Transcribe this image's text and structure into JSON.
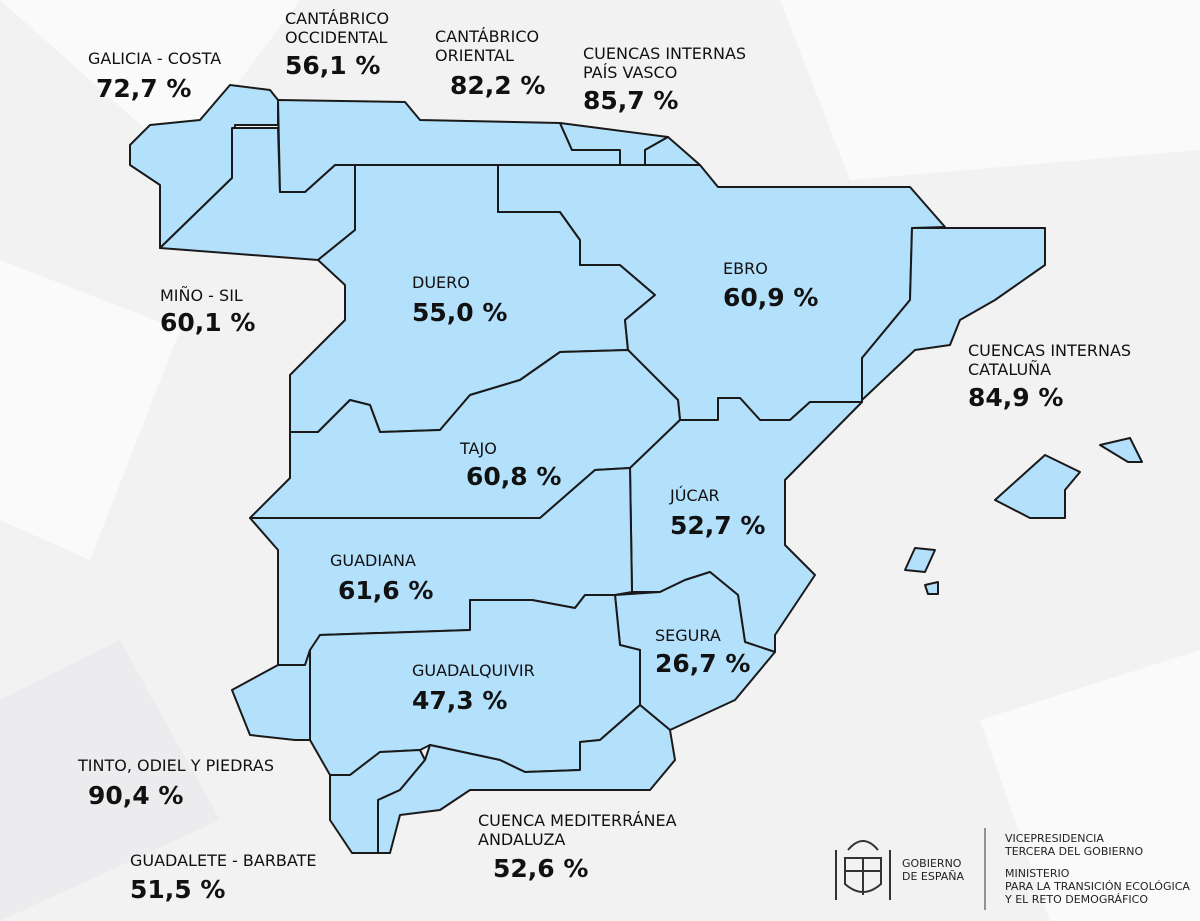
{
  "map": {
    "regions": [
      {
        "name": [
          "GALICIA - COSTA"
        ],
        "value": "72,7 %"
      },
      {
        "name": [
          "CANTÁBRICO",
          "OCCIDENTAL"
        ],
        "value": "56,1 %"
      },
      {
        "name": [
          "CANTÁBRICO",
          "ORIENTAL"
        ],
        "value": "82,2 %"
      },
      {
        "name": [
          "CUENCAS INTERNAS",
          "PAÍS VASCO"
        ],
        "value": "85,7 %"
      },
      {
        "name": [
          "MIÑO - SIL"
        ],
        "value": "60,1 %"
      },
      {
        "name": [
          "DUERO"
        ],
        "value": "55,0 %"
      },
      {
        "name": [
          "EBRO"
        ],
        "value": "60,9 %"
      },
      {
        "name": [
          "CUENCAS INTERNAS",
          "CATALUÑA"
        ],
        "value": "84,9 %"
      },
      {
        "name": [
          "TAJO"
        ],
        "value": "60,8 %"
      },
      {
        "name": [
          "JÚCAR"
        ],
        "value": "52,7 %"
      },
      {
        "name": [
          "GUADIANA"
        ],
        "value": "61,6 %"
      },
      {
        "name": [
          "SEGURA"
        ],
        "value": "26,7 %"
      },
      {
        "name": [
          "GUADALQUIVIR"
        ],
        "value": "47,3 %"
      },
      {
        "name": [
          "TINTO, ODIEL Y PIEDRAS"
        ],
        "value": "90,4 %"
      },
      {
        "name": [
          "GUADALETE - BARBATE"
        ],
        "value": "51,5 %"
      },
      {
        "name": [
          "CUENCA MEDITERRÁNEA",
          "ANDALUZA"
        ],
        "value": "52,6 %"
      }
    ]
  },
  "footer": {
    "government": [
      "GOBIERNO",
      "DE ESPAÑA"
    ],
    "vicepresidency": [
      "VICEPRESIDENCIA",
      "TERCERA DEL GOBIERNO"
    ],
    "ministry": [
      "MINISTERIO",
      "PARA LA TRANSICIÓN ECOLÓGICA",
      "Y EL RETO DEMOGRÁFICO"
    ]
  }
}
